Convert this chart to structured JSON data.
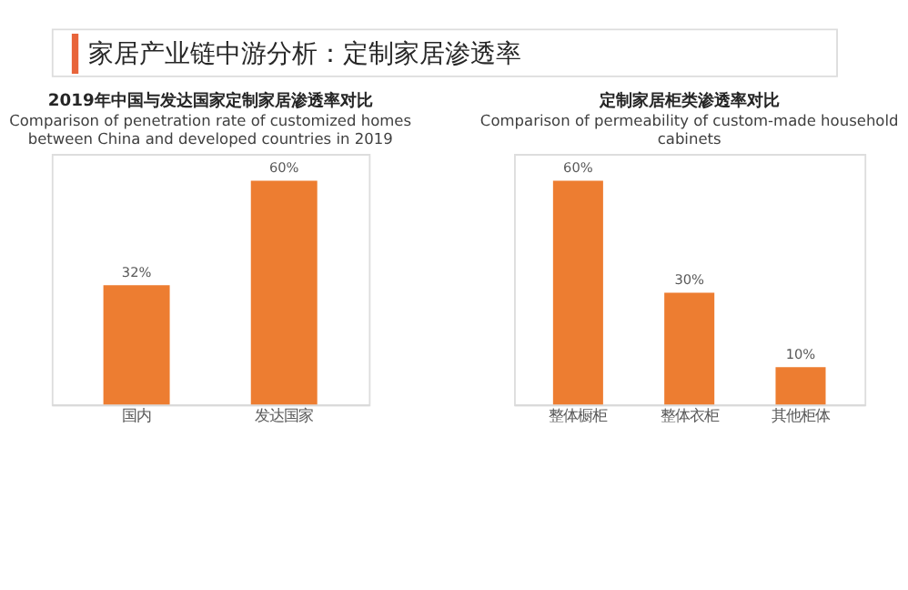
{
  "chart_data": [
    {
      "type": "bar",
      "title": "2019年中国与发达国家定制家居渗透率对比",
      "subtitle": "Comparison of penetration rate of customized homes between China and developed countries in 2019",
      "annotations": [
        "家居产业链中游分析：定制家居渗透率"
      ],
      "categories": [
        "国内",
        "发达国家"
      ],
      "values": [
        32,
        60
      ],
      "value_labels": [
        "32%",
        "60%"
      ],
      "color": "#ed7d31",
      "grid": false,
      "tick_labels": "x"
    },
    {
      "type": "bar",
      "title": "定制家居柜类渗透率对比",
      "subtitle": "Comparison of permeability of custom-made household cabinets",
      "categories": [
        "整体橱柜",
        "整体衣柜",
        "其他柜体"
      ],
      "values": [
        60,
        30,
        10
      ],
      "value_labels": [
        "60%",
        "30%",
        "10%"
      ],
      "color": "#ed7d31",
      "grid": false,
      "tick_labels": "x"
    }
  ]
}
